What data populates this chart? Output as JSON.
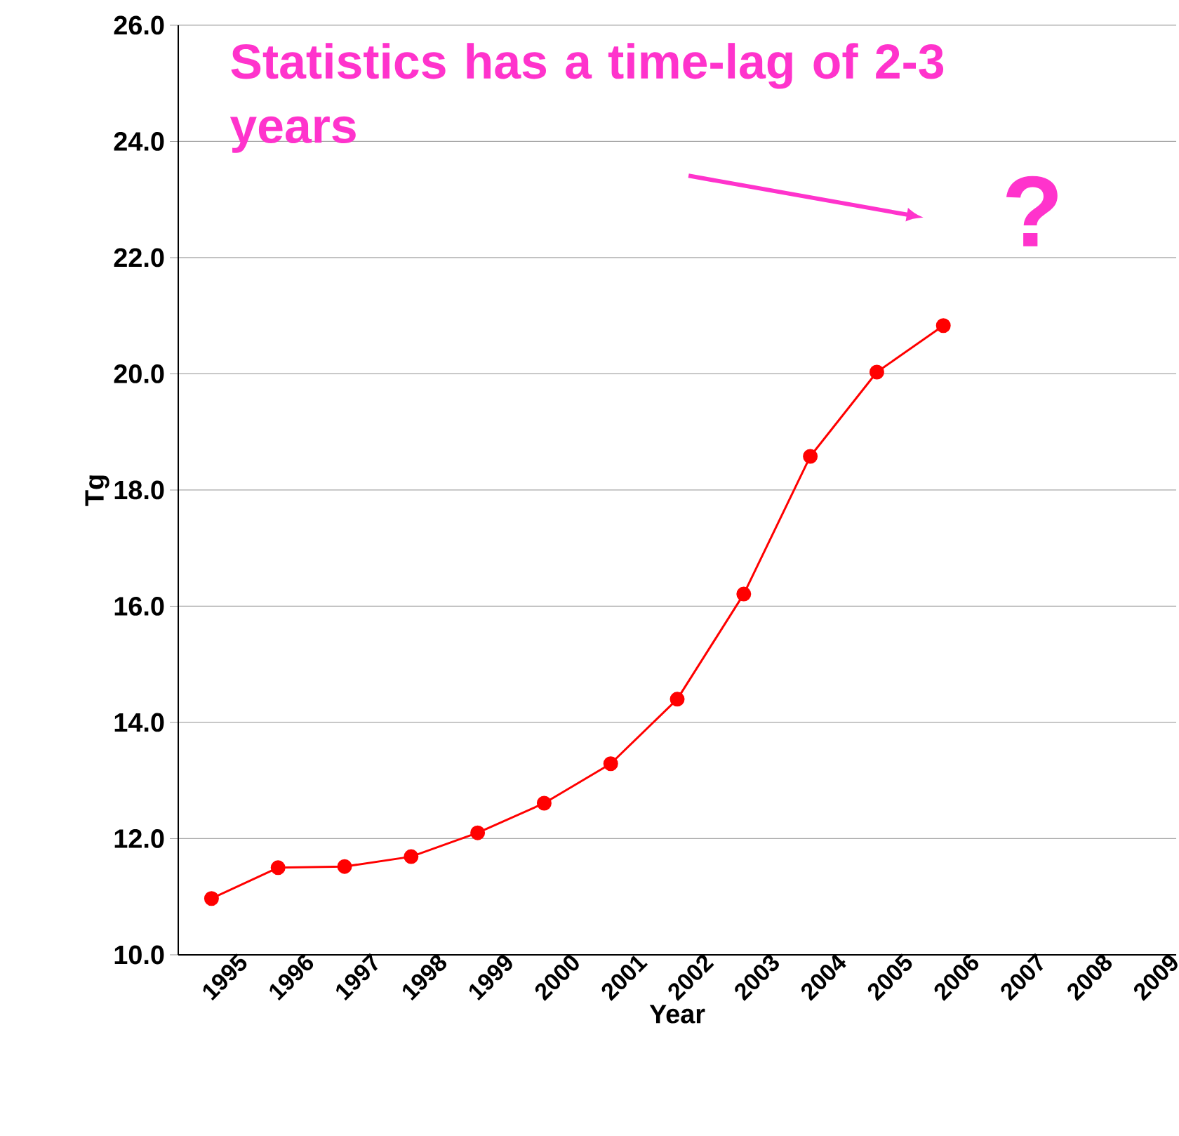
{
  "chart_data": {
    "type": "line",
    "xlabel": "Year",
    "ylabel": "Tg",
    "categories": [
      "1995",
      "1996",
      "1997",
      "1998",
      "1999",
      "2000",
      "2001",
      "2002",
      "2003",
      "2004",
      "2005",
      "2006",
      "2007",
      "2008",
      "2009"
    ],
    "series": [
      {
        "color": "#ff0000",
        "values": [
          10.97,
          11.5,
          11.52,
          11.69,
          12.1,
          12.61,
          13.29,
          14.4,
          16.21,
          18.58,
          20.03,
          20.83,
          null,
          null,
          null
        ]
      }
    ],
    "ylim": [
      10,
      26
    ],
    "yticks": [
      {
        "value": 10,
        "label": "10.0"
      },
      {
        "value": 12,
        "label": "12.0"
      },
      {
        "value": 14,
        "label": "14.0"
      },
      {
        "value": 16,
        "label": "16.0"
      },
      {
        "value": 18,
        "label": "18.0"
      },
      {
        "value": 20,
        "label": "20.0"
      },
      {
        "value": 22,
        "label": "22.0"
      },
      {
        "value": 24,
        "label": "24.0"
      },
      {
        "value": 26,
        "label": "26.0"
      }
    ],
    "grid": "y",
    "marker": "circle",
    "line_style": "solid",
    "annotations": [
      "Statistics has a time-lag of 2-3 years",
      "?"
    ]
  }
}
